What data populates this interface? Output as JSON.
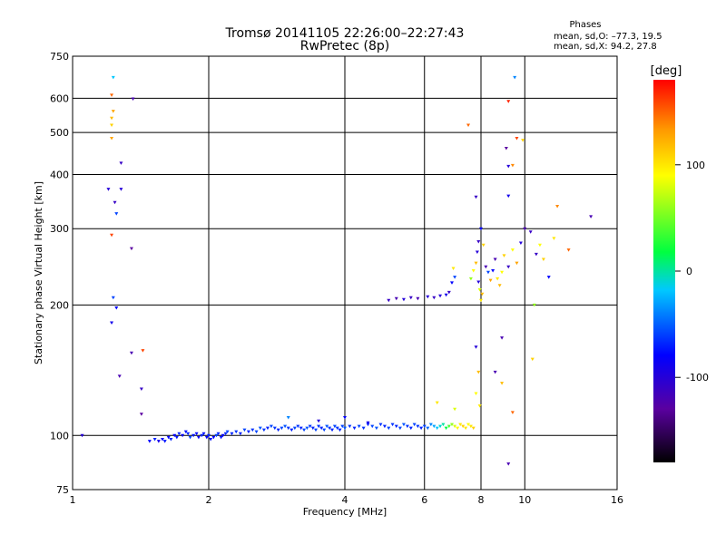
{
  "chart_data": {
    "type": "scatter",
    "title": "Tromsø 20141105 22:26:00–22:27:43",
    "subtitle": "RwPretec (8p)",
    "xlabel": "Frequency [MHz]",
    "ylabel": "Stationary phase Virtual Height [km]",
    "x_scale": "log2",
    "y_scale": "log",
    "xlim": [
      1,
      16
    ],
    "ylim": [
      75,
      750
    ],
    "x_ticks": [
      1,
      2,
      4,
      6,
      8,
      10,
      16
    ],
    "y_ticks": [
      75,
      100,
      200,
      300,
      400,
      500,
      600,
      750
    ],
    "grid": true,
    "phases": {
      "heading": "Phases",
      "line_o": "mean, sd,O: –77.3, 19.5",
      "line_x": "mean, sd,X:  94.2, 27.8"
    },
    "colorbar": {
      "label": "[deg]",
      "range": [
        -180,
        180
      ],
      "ticks": [
        100,
        0,
        -100
      ]
    },
    "points_meta": "each point: [frequency MHz, virtual height km, phase deg]",
    "points": [
      [
        1.05,
        100,
        -100
      ],
      [
        1.22,
        290,
        160
      ],
      [
        1.22,
        610,
        150
      ],
      [
        1.23,
        560,
        130
      ],
      [
        1.22,
        540,
        120
      ],
      [
        1.22,
        520,
        110
      ],
      [
        1.22,
        485,
        130
      ],
      [
        1.23,
        670,
        -20
      ],
      [
        1.2,
        370,
        -100
      ],
      [
        1.24,
        345,
        -110
      ],
      [
        1.25,
        325,
        -60
      ],
      [
        1.28,
        370,
        -100
      ],
      [
        1.28,
        425,
        -110
      ],
      [
        1.36,
        598,
        -120
      ],
      [
        1.35,
        270,
        -130
      ],
      [
        1.23,
        208,
        -60
      ],
      [
        1.25,
        197,
        -80
      ],
      [
        1.22,
        182,
        -90
      ],
      [
        1.27,
        137,
        -120
      ],
      [
        1.35,
        155,
        -120
      ],
      [
        1.43,
        157,
        160
      ],
      [
        1.42,
        128,
        -110
      ],
      [
        1.42,
        112,
        -130
      ],
      [
        1.48,
        97,
        -80
      ],
      [
        1.52,
        98,
        -70
      ],
      [
        1.55,
        97,
        -90
      ],
      [
        1.58,
        98,
        -80
      ],
      [
        1.6,
        97,
        -75
      ],
      [
        1.63,
        99,
        -80
      ],
      [
        1.65,
        98,
        -70
      ],
      [
        1.68,
        100,
        -80
      ],
      [
        1.7,
        99,
        -75
      ],
      [
        1.72,
        101,
        -70
      ],
      [
        1.75,
        100,
        -80
      ],
      [
        1.78,
        102,
        -75
      ],
      [
        1.8,
        101,
        -70
      ],
      [
        1.82,
        99,
        -60
      ],
      [
        1.85,
        100,
        -75
      ],
      [
        1.88,
        101,
        -80
      ],
      [
        1.9,
        99,
        -85
      ],
      [
        1.93,
        100,
        -70
      ],
      [
        1.95,
        101,
        -75
      ],
      [
        1.98,
        99,
        -80
      ],
      [
        2.0,
        100,
        -70
      ],
      [
        2.02,
        98,
        -75
      ],
      [
        2.05,
        99,
        -80
      ],
      [
        2.08,
        100,
        -60
      ],
      [
        2.1,
        101,
        -70
      ],
      [
        2.13,
        99,
        -75
      ],
      [
        2.15,
        100,
        -80
      ],
      [
        2.18,
        101,
        -70
      ],
      [
        2.2,
        102,
        -60
      ],
      [
        2.25,
        101,
        -70
      ],
      [
        2.3,
        102,
        -65
      ],
      [
        2.35,
        101,
        -70
      ],
      [
        2.4,
        103,
        -60
      ],
      [
        2.45,
        102,
        -70
      ],
      [
        2.5,
        103,
        -65
      ],
      [
        2.55,
        102,
        -60
      ],
      [
        2.6,
        104,
        -55
      ],
      [
        2.65,
        103,
        -65
      ],
      [
        2.7,
        104,
        -70
      ],
      [
        2.75,
        105,
        -60
      ],
      [
        2.8,
        104,
        -65
      ],
      [
        2.85,
        103,
        -70
      ],
      [
        2.9,
        104,
        -60
      ],
      [
        2.95,
        105,
        -55
      ],
      [
        3.0,
        104,
        -65
      ],
      [
        3.05,
        103,
        -70
      ],
      [
        3.1,
        104,
        -60
      ],
      [
        3.15,
        105,
        -65
      ],
      [
        3.2,
        104,
        -70
      ],
      [
        3.25,
        103,
        -60
      ],
      [
        3.3,
        104,
        -55
      ],
      [
        3.35,
        105,
        -65
      ],
      [
        3.4,
        104,
        -70
      ],
      [
        3.45,
        103,
        -60
      ],
      [
        3.5,
        105,
        -65
      ],
      [
        3.55,
        104,
        -70
      ],
      [
        3.6,
        103,
        -60
      ],
      [
        3.65,
        105,
        -55
      ],
      [
        3.7,
        104,
        -65
      ],
      [
        3.75,
        103,
        -70
      ],
      [
        3.8,
        105,
        -60
      ],
      [
        3.85,
        104,
        -65
      ],
      [
        3.9,
        103,
        -70
      ],
      [
        3.95,
        105,
        -60
      ],
      [
        4.0,
        104,
        -55
      ],
      [
        4.1,
        105,
        -65
      ],
      [
        4.2,
        104,
        -70
      ],
      [
        4.3,
        105,
        -60
      ],
      [
        4.4,
        104,
        -65
      ],
      [
        4.5,
        106,
        -70
      ],
      [
        4.6,
        105,
        -60
      ],
      [
        4.7,
        104,
        -55
      ],
      [
        4.8,
        106,
        -65
      ],
      [
        4.9,
        105,
        -70
      ],
      [
        5.0,
        104,
        -60
      ],
      [
        5.1,
        106,
        -65
      ],
      [
        5.2,
        105,
        -70
      ],
      [
        5.3,
        104,
        -60
      ],
      [
        5.4,
        106,
        -55
      ],
      [
        5.5,
        105,
        -65
      ],
      [
        5.6,
        104,
        -70
      ],
      [
        5.7,
        106,
        -60
      ],
      [
        5.8,
        105,
        -65
      ],
      [
        5.9,
        104,
        -70
      ],
      [
        6.0,
        105,
        -60
      ],
      [
        6.1,
        104,
        -50
      ],
      [
        6.2,
        106,
        -40
      ],
      [
        6.3,
        105,
        -30
      ],
      [
        6.4,
        104,
        -20
      ],
      [
        6.5,
        105,
        -10
      ],
      [
        6.6,
        106,
        0
      ],
      [
        6.7,
        104,
        20
      ],
      [
        6.8,
        105,
        40
      ],
      [
        6.9,
        106,
        60
      ],
      [
        7.0,
        105,
        80
      ],
      [
        7.1,
        104,
        90
      ],
      [
        7.2,
        106,
        100
      ],
      [
        7.3,
        105,
        110
      ],
      [
        7.4,
        104,
        100
      ],
      [
        7.5,
        106,
        90
      ],
      [
        7.6,
        105,
        100
      ],
      [
        7.7,
        104,
        110
      ],
      [
        3.0,
        110,
        -40
      ],
      [
        3.5,
        108,
        -100
      ],
      [
        4.0,
        110,
        -80
      ],
      [
        4.5,
        107,
        -90
      ],
      [
        5.0,
        205,
        -110
      ],
      [
        5.2,
        207,
        -120
      ],
      [
        5.4,
        206,
        -100
      ],
      [
        5.6,
        208,
        -110
      ],
      [
        5.8,
        207,
        -120
      ],
      [
        6.1,
        209,
        -100
      ],
      [
        6.3,
        208,
        -110
      ],
      [
        6.5,
        210,
        -100
      ],
      [
        6.7,
        211,
        -90
      ],
      [
        6.8,
        214,
        -110
      ],
      [
        6.9,
        225,
        -80
      ],
      [
        7.0,
        232,
        -60
      ],
      [
        6.95,
        243,
        100
      ],
      [
        7.6,
        230,
        60
      ],
      [
        7.7,
        240,
        90
      ],
      [
        7.8,
        250,
        120
      ],
      [
        7.9,
        226,
        -100
      ],
      [
        7.95,
        217,
        80
      ],
      [
        8.0,
        205,
        100
      ],
      [
        8.05,
        212,
        120
      ],
      [
        7.85,
        265,
        -100
      ],
      [
        7.9,
        280,
        -110
      ],
      [
        8.0,
        300,
        -80
      ],
      [
        8.1,
        275,
        110
      ],
      [
        8.2,
        245,
        -120
      ],
      [
        8.3,
        238,
        -60
      ],
      [
        8.4,
        228,
        130
      ],
      [
        8.5,
        240,
        -80
      ],
      [
        8.6,
        255,
        -120
      ],
      [
        8.7,
        230,
        100
      ],
      [
        8.8,
        222,
        120
      ],
      [
        8.9,
        238,
        90
      ],
      [
        9.0,
        260,
        110
      ],
      [
        9.2,
        245,
        -110
      ],
      [
        9.4,
        268,
        90
      ],
      [
        9.6,
        250,
        130
      ],
      [
        9.8,
        278,
        -100
      ],
      [
        10.0,
        300,
        -120
      ],
      [
        10.3,
        295,
        -110
      ],
      [
        10.6,
        262,
        -110
      ],
      [
        10.8,
        275,
        90
      ],
      [
        11.0,
        255,
        110
      ],
      [
        11.3,
        232,
        -80
      ],
      [
        11.6,
        285,
        100
      ],
      [
        12.5,
        268,
        150
      ],
      [
        11.8,
        338,
        140
      ],
      [
        14.0,
        320,
        -120
      ],
      [
        7.8,
        355,
        -110
      ],
      [
        7.5,
        520,
        150
      ],
      [
        9.2,
        590,
        170
      ],
      [
        9.5,
        670,
        -40
      ],
      [
        9.1,
        460,
        -130
      ],
      [
        9.2,
        418,
        -100
      ],
      [
        9.4,
        420,
        140
      ],
      [
        9.6,
        485,
        160
      ],
      [
        9.9,
        480,
        110
      ],
      [
        9.2,
        357,
        -90
      ],
      [
        7.8,
        160,
        -100
      ],
      [
        7.9,
        140,
        120
      ],
      [
        7.8,
        125,
        90
      ],
      [
        7.95,
        117,
        100
      ],
      [
        8.6,
        140,
        -120
      ],
      [
        8.9,
        132,
        120
      ],
      [
        9.4,
        113,
        150
      ],
      [
        9.2,
        86,
        -120
      ],
      [
        10.4,
        150,
        110
      ],
      [
        10.5,
        200,
        60
      ],
      [
        8.9,
        168,
        -120
      ],
      [
        6.4,
        119,
        100
      ],
      [
        7.0,
        115,
        80
      ]
    ]
  }
}
